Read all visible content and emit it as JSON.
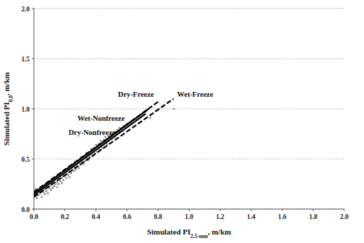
{
  "chart_data": {
    "type": "scatter",
    "x_label": [
      "Simulated PI",
      "2.5-mm",
      ", m/km"
    ],
    "y_label": [
      "Simulated PI",
      "0.0",
      ", m/km"
    ],
    "xlim": [
      0,
      2
    ],
    "ylim": [
      0,
      2
    ],
    "xticks": [
      {
        "value": 0,
        "label": "0.0"
      },
      0.2,
      0.4,
      0.6,
      0.8,
      {
        "value": 1,
        "label": "1.0"
      },
      1.2,
      1.4,
      1.6,
      1.8,
      {
        "value": 2,
        "label": "2.0"
      }
    ],
    "yticks": [
      {
        "value": 0,
        "label": "0.0"
      },
      0.5,
      {
        "value": 1,
        "label": "1.0"
      },
      1.5,
      {
        "value": 2,
        "label": "2.0"
      }
    ],
    "grid": "y",
    "series": [
      {
        "type": "scatter",
        "color": "#9a9a9a",
        "marker": "circle",
        "x": [
          0.0,
          0.0,
          0.01,
          0.01,
          0.02,
          0.02,
          0.03,
          0.03,
          0.04,
          0.04,
          0.05,
          0.05,
          0.06,
          0.06,
          0.07,
          0.07,
          0.08,
          0.08,
          0.09,
          0.09,
          0.1,
          0.1,
          0.11,
          0.11,
          0.12,
          0.12,
          0.13,
          0.13,
          0.14,
          0.14,
          0.15,
          0.15,
          0.16,
          0.16,
          0.17,
          0.17,
          0.18,
          0.18,
          0.19,
          0.19,
          0.2,
          0.2,
          0.21,
          0.21,
          0.22,
          0.22,
          0.23,
          0.23,
          0.24,
          0.24,
          0.25,
          0.25,
          0.26,
          0.26,
          0.27,
          0.27,
          0.28,
          0.28,
          0.29,
          0.29,
          0.3,
          0.3,
          0.31,
          0.31,
          0.32,
          0.32,
          0.33,
          0.33,
          0.34,
          0.34,
          0.35,
          0.35,
          0.36,
          0.36,
          0.37,
          0.37,
          0.38,
          0.38,
          0.39,
          0.39,
          0.4,
          0.4,
          0.41,
          0.41,
          0.42,
          0.42,
          0.43,
          0.43,
          0.44,
          0.44,
          0.45,
          0.45,
          0.46,
          0.46,
          0.47,
          0.47,
          0.48,
          0.48,
          0.49,
          0.5,
          0.5,
          0.51,
          0.52,
          0.52,
          0.53,
          0.54,
          0.55,
          0.55,
          0.56,
          0.57,
          0.58,
          0.59,
          0.6,
          0.61,
          0.62,
          0.63,
          0.64,
          0.66,
          0.68,
          0.7,
          0.72,
          0.75,
          0.9
        ],
        "values": [
          0.1,
          0.17,
          0.13,
          0.2,
          0.15,
          0.11,
          0.18,
          0.14,
          0.21,
          0.16,
          0.12,
          0.19,
          0.17,
          0.23,
          0.15,
          0.2,
          0.18,
          0.25,
          0.22,
          0.16,
          0.21,
          0.27,
          0.19,
          0.24,
          0.26,
          0.21,
          0.23,
          0.29,
          0.25,
          0.31,
          0.27,
          0.22,
          0.3,
          0.25,
          0.33,
          0.28,
          0.31,
          0.26,
          0.35,
          0.29,
          0.33,
          0.38,
          0.31,
          0.36,
          0.4,
          0.34,
          0.37,
          0.32,
          0.41,
          0.36,
          0.39,
          0.44,
          0.38,
          0.42,
          0.45,
          0.4,
          0.43,
          0.48,
          0.41,
          0.46,
          0.49,
          0.44,
          0.47,
          0.52,
          0.45,
          0.5,
          0.53,
          0.48,
          0.51,
          0.56,
          0.49,
          0.54,
          0.57,
          0.52,
          0.55,
          0.6,
          0.53,
          0.58,
          0.61,
          0.56,
          0.59,
          0.64,
          0.57,
          0.62,
          0.65,
          0.6,
          0.63,
          0.68,
          0.66,
          0.61,
          0.69,
          0.64,
          0.67,
          0.72,
          0.7,
          0.65,
          0.73,
          0.68,
          0.71,
          0.75,
          0.7,
          0.73,
          0.77,
          0.72,
          0.75,
          0.79,
          0.77,
          0.81,
          0.8,
          0.78,
          0.83,
          0.81,
          0.85,
          0.83,
          0.87,
          0.85,
          0.89,
          0.9,
          0.92,
          0.95,
          0.97,
          0.91,
          1.0
        ]
      },
      {
        "name": "Dry-Nonfreeze",
        "type": "line",
        "line_style": "solid",
        "color": "#000000",
        "x": [
          0,
          0.72
        ],
        "values": [
          0.14,
          0.95
        ]
      },
      {
        "name": "Wet-Nonfreeze",
        "type": "line",
        "line_style": "solid",
        "color": "#000000",
        "x": [
          0,
          0.74
        ],
        "values": [
          0.16,
          1.0
        ]
      },
      {
        "name": "Dry-Freeze",
        "type": "line",
        "line_style": "dashed",
        "color": "#000000",
        "x": [
          0,
          0.8
        ],
        "values": [
          0.17,
          1.07
        ]
      },
      {
        "name": "Wet-Freeze",
        "type": "line",
        "line_style": "dashed",
        "color": "#000000",
        "x": [
          0,
          0.9
        ],
        "values": [
          0.12,
          1.1
        ]
      }
    ]
  }
}
